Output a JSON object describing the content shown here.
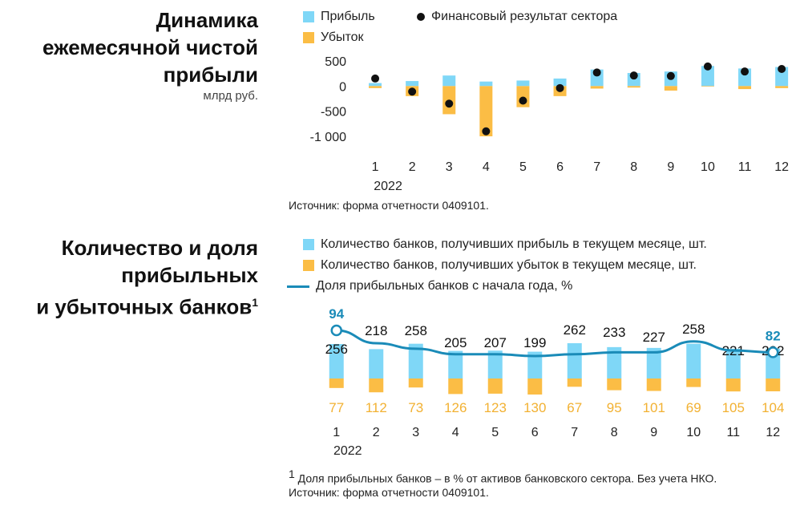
{
  "colors": {
    "profit": "#7fd7f7",
    "loss": "#fbbd45",
    "result_dot": "#111111",
    "share_line": "#1a8bb8",
    "axis_text": "#222222",
    "loss_label": "#f2b132",
    "share_label": "#1a8bb8"
  },
  "chart1": {
    "title_lines": [
      "Динамика",
      "ежемесячной чистой",
      "прибыли"
    ],
    "unit": "млрд руб.",
    "legend": {
      "profit": "Прибыль",
      "loss": "Убыток",
      "result": "Финансовый результат сектора"
    },
    "source": "Источник: форма отчетности 0409101."
  },
  "chart2": {
    "title_lines": [
      "Количество и доля",
      "прибыльных",
      "и убыточных банков"
    ],
    "title_footnote_mark": "1",
    "legend": {
      "profit": "Количество банков, получивших прибыль в текущем месяце, шт.",
      "loss": "Количество банков, получивших убыток в текущем месяце, шт.",
      "share": "Доля прибыльных банков с начала года, %"
    },
    "footnote_mark": "1",
    "footnote": " Доля прибыльных банков – в % от активов банковского сектора. Без учета НКО.",
    "source": "Источник: форма отчетности 0409101."
  },
  "chart_data": [
    {
      "type": "bar",
      "categories": [
        "1",
        "2",
        "3",
        "4",
        "5",
        "6",
        "7",
        "8",
        "9",
        "10",
        "11",
        "12"
      ],
      "year_label": "2022",
      "series": [
        {
          "name": "Прибыль",
          "values": [
            60,
            100,
            210,
            90,
            110,
            150,
            330,
            260,
            290,
            400,
            350,
            380
          ]
        },
        {
          "name": "Убыток",
          "values": [
            -40,
            -200,
            -560,
            -1000,
            -420,
            -200,
            -50,
            -30,
            -90,
            -10,
            -60,
            -40
          ]
        },
        {
          "name": "Финансовый результат сектора",
          "values": [
            150,
            -110,
            -350,
            -900,
            -290,
            -40,
            270,
            210,
            200,
            390,
            290,
            340
          ]
        }
      ],
      "yticks": [
        "500",
        "0",
        "-500",
        "-1 000"
      ],
      "ylim": [
        -1000,
        500
      ]
    },
    {
      "type": "bar",
      "categories": [
        "1",
        "2",
        "3",
        "4",
        "5",
        "6",
        "7",
        "8",
        "9",
        "10",
        "11",
        "12"
      ],
      "year_label": "2022",
      "series": [
        {
          "name": "Количество банков, получивших прибыль в текущем месяце, шт.",
          "values": [
            256,
            218,
            258,
            205,
            207,
            199,
            262,
            233,
            227,
            258,
            221,
            222
          ]
        },
        {
          "name": "Количество банков, получивших убыток в текущем месяце, шт.",
          "values": [
            77,
            112,
            73,
            126,
            123,
            130,
            67,
            95,
            101,
            69,
            105,
            104
          ]
        },
        {
          "name": "Доля прибыльных банков с начала года, %",
          "values": [
            94,
            87,
            84,
            81,
            81,
            80,
            81,
            82,
            82,
            88,
            83,
            82
          ],
          "labeled_points": [
            0,
            11
          ]
        }
      ]
    }
  ]
}
